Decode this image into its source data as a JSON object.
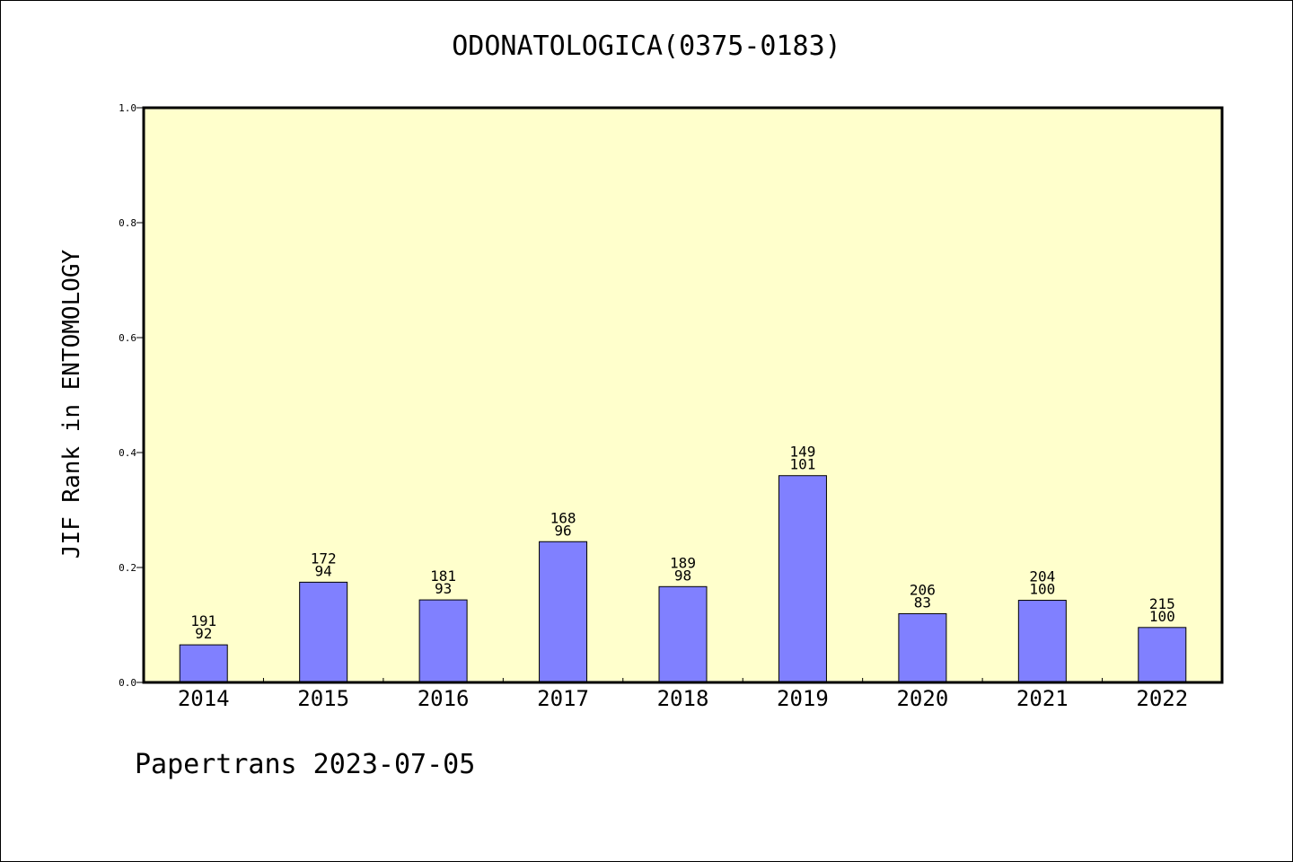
{
  "chart_data": {
    "type": "bar",
    "title": "ODONATOLOGICA(0375-0183)",
    "ylabel": "JIF Rank in ENTOMOLOGY",
    "xlabel": "",
    "ylim": [
      0,
      1
    ],
    "yticks": [
      "0.0",
      "0.2",
      "0.4",
      "0.6",
      "0.8",
      "1.0"
    ],
    "grid": false,
    "categories": [
      "2014",
      "2015",
      "2016",
      "2017",
      "2018",
      "2019",
      "2020",
      "2021",
      "2022"
    ],
    "values": [
      0.0654,
      0.1744,
      0.1436,
      0.2449,
      0.1667,
      0.3598,
      0.1196,
      0.1429,
      0.0956
    ],
    "totals": [
      "191",
      "172",
      "181",
      "168",
      "189",
      "149",
      "206",
      "204",
      "215"
    ],
    "ranks": [
      "92",
      "94",
      "93",
      "96",
      "98",
      "101",
      "83",
      "100",
      "100"
    ],
    "bar_color": "#8080ff",
    "plot_background": "#ffffcc"
  },
  "footer": {
    "credit": "Papertrans 2023-07-05"
  }
}
